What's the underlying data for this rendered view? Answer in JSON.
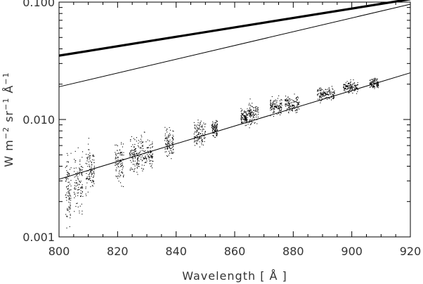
{
  "chart_data": {
    "type": "scatter",
    "title": "",
    "xlabel": "Wavelength [ Å ]",
    "ylabel_parts": [
      "W m",
      "−2",
      " sr",
      "−1",
      " Å",
      "−1"
    ],
    "xlim": [
      800,
      920
    ],
    "ylim": [
      0.001,
      0.1
    ],
    "yscale": "log",
    "grid": false,
    "x_ticks": [
      800,
      820,
      840,
      860,
      880,
      900,
      920
    ],
    "x_tick_labels": [
      "800",
      "820",
      "840",
      "860",
      "880",
      "900",
      "920"
    ],
    "y_ticks": [
      0.001,
      0.01,
      0.1
    ],
    "y_tick_labels": [
      "0.001",
      "0.010",
      "0.100"
    ],
    "lines": [
      {
        "style": "thick",
        "x": [
          800,
          920
        ],
        "y": [
          0.035,
          0.106
        ]
      },
      {
        "style": "thin",
        "x": [
          800,
          920
        ],
        "y": [
          0.019,
          0.096
        ]
      },
      {
        "style": "thin",
        "x": [
          800,
          920
        ],
        "y": [
          0.0031,
          0.025
        ]
      }
    ],
    "scatter_clusters": [
      {
        "x": [
          802,
          804
        ],
        "y": 0.0025,
        "spread": 0.25
      },
      {
        "x": [
          805,
          808
        ],
        "y": 0.003,
        "spread": 0.22
      },
      {
        "x": [
          809,
          812
        ],
        "y": 0.0038,
        "spread": 0.18
      },
      {
        "x": [
          819,
          822
        ],
        "y": 0.0044,
        "spread": 0.15
      },
      {
        "x": [
          824,
          827
        ],
        "y": 0.0048,
        "spread": 0.13
      },
      {
        "x": [
          827,
          832
        ],
        "y": 0.0052,
        "spread": 0.13
      },
      {
        "x": [
          836,
          839
        ],
        "y": 0.0063,
        "spread": 0.1
      },
      {
        "x": [
          846,
          850
        ],
        "y": 0.0077,
        "spread": 0.09
      },
      {
        "x": [
          852,
          854
        ],
        "y": 0.0085,
        "spread": 0.07
      },
      {
        "x": [
          862,
          864
        ],
        "y": 0.0105,
        "spread": 0.06
      },
      {
        "x": [
          864,
          868
        ],
        "y": 0.0112,
        "spread": 0.08
      },
      {
        "x": [
          872,
          876
        ],
        "y": 0.013,
        "spread": 0.06
      },
      {
        "x": [
          877,
          882
        ],
        "y": 0.0138,
        "spread": 0.06
      },
      {
        "x": [
          888,
          894
        ],
        "y": 0.0165,
        "spread": 0.05
      },
      {
        "x": [
          897,
          902
        ],
        "y": 0.019,
        "spread": 0.04
      },
      {
        "x": [
          906,
          909
        ],
        "y": 0.0205,
        "spread": 0.04
      }
    ]
  }
}
